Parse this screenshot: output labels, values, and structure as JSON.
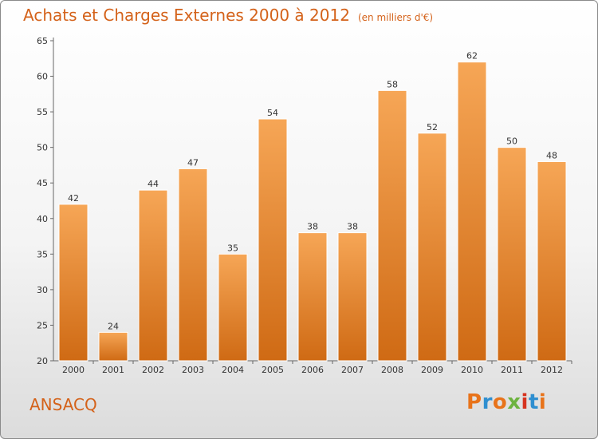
{
  "header": {
    "title": "Achats et Charges Externes 2000 à 2012",
    "subtitle": "(en milliers d'€)"
  },
  "footer": {
    "commune": "ANSACQ",
    "logo_text": "Proxiti",
    "logo_colors": [
      "#e8731a",
      "#2f8fd0",
      "#e8731a",
      "#6db33f",
      "#d6331f",
      "#2f8fd0",
      "#e8731a"
    ]
  },
  "chart_data": {
    "type": "bar",
    "title": "Achats et Charges Externes 2000 à 2012",
    "subtitle": "(en milliers d'€)",
    "categories": [
      "2000",
      "2001",
      "2002",
      "2003",
      "2004",
      "2005",
      "2006",
      "2007",
      "2008",
      "2009",
      "2010",
      "2011",
      "2012"
    ],
    "values": [
      42,
      24,
      44,
      47,
      35,
      54,
      38,
      38,
      58,
      52,
      62,
      50,
      48
    ],
    "ylim": [
      20,
      65
    ],
    "yticks": [
      20,
      25,
      30,
      35,
      40,
      45,
      50,
      55,
      60,
      65
    ],
    "xlabel": "",
    "ylabel": "",
    "grid": false,
    "bar_color": "#f08a2c"
  }
}
